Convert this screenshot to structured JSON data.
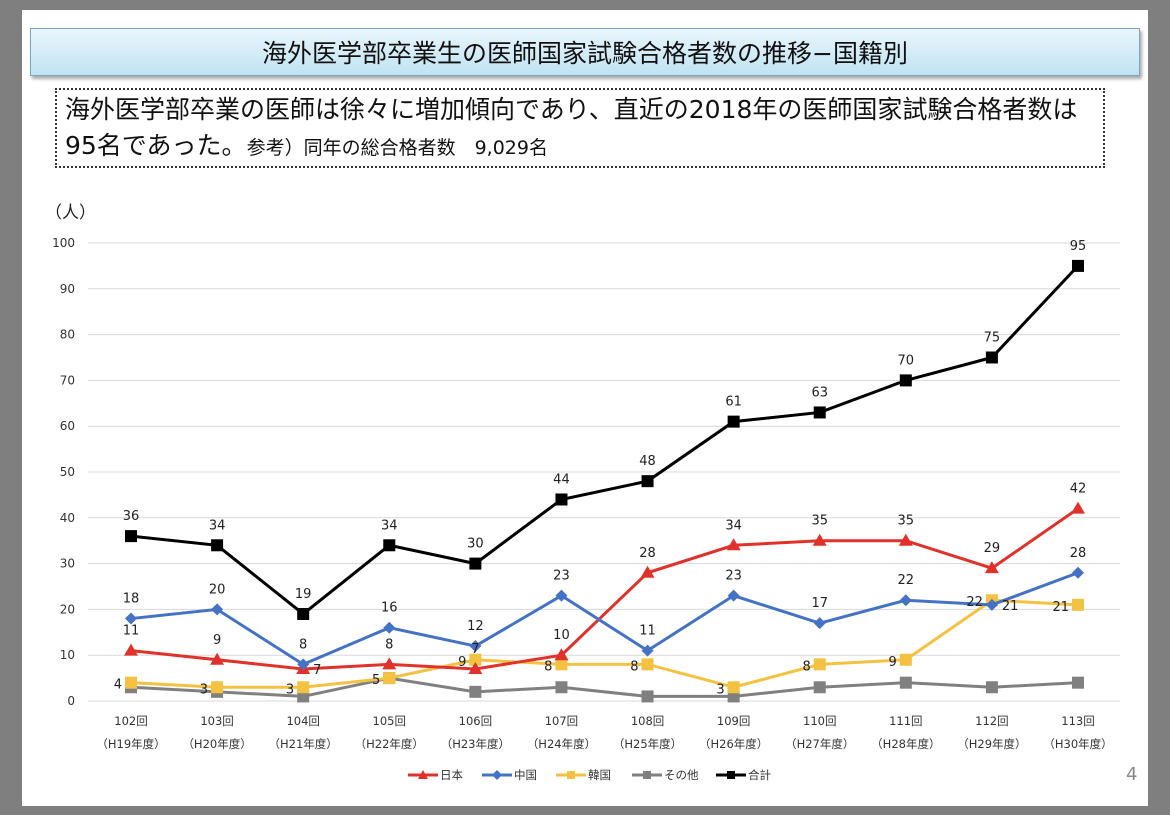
{
  "title": "海外医学部卒業生の医師国家試験合格者数の推移−国籍別",
  "summary": {
    "main": "海外医学部卒業の医師は徐々に増加傾向であり、直近の2018年の医師国家試験合格者数は95名であった。",
    "ref": "参考）同年の総合格者数　9,029名"
  },
  "page_number": "4",
  "chart_data": {
    "type": "line",
    "ylabel": "（人）",
    "ylim": [
      0,
      100
    ],
    "yticks": [
      0,
      10,
      20,
      30,
      40,
      50,
      60,
      70,
      80,
      90,
      100
    ],
    "grid": true,
    "legend_position": "bottom",
    "categories": [
      [
        "102回",
        "（H19年度）"
      ],
      [
        "103回",
        "（H20年度）"
      ],
      [
        "104回",
        "（H21年度）"
      ],
      [
        "105回",
        "（H22年度）"
      ],
      [
        "106回",
        "（H23年度）"
      ],
      [
        "107回",
        "（H24年度）"
      ],
      [
        "108回",
        "（H25年度）"
      ],
      [
        "109回",
        "（H26年度）"
      ],
      [
        "110回",
        "（H27年度）"
      ],
      [
        "111回",
        "（H28年度）"
      ],
      [
        "112回",
        "（H29年度）"
      ],
      [
        "113回",
        "（H30年度）"
      ]
    ],
    "series": [
      {
        "name": "日本",
        "color": "#e0322a",
        "marker": "triangle",
        "labels": true,
        "label_pos": "above",
        "values": [
          11,
          9,
          7,
          8,
          7,
          10,
          28,
          34,
          35,
          35,
          29,
          42
        ]
      },
      {
        "name": "中国",
        "color": "#4472c4",
        "marker": "diamond",
        "labels": true,
        "label_pos": "above",
        "values": [
          18,
          20,
          8,
          16,
          12,
          23,
          11,
          23,
          17,
          22,
          21,
          28
        ]
      },
      {
        "name": "韓国",
        "color": "#f4c242",
        "marker": "square",
        "labels": true,
        "label_pos": "left",
        "values": [
          4,
          3,
          3,
          5,
          9,
          8,
          8,
          3,
          8,
          9,
          22,
          21
        ]
      },
      {
        "name": "その他",
        "color": "#808080",
        "marker": "square",
        "labels": false,
        "values": [
          3,
          2,
          1,
          5,
          2,
          3,
          1,
          1,
          3,
          4,
          3,
          4
        ]
      },
      {
        "name": "合計",
        "color": "#000000",
        "marker": "square",
        "labels": true,
        "label_pos": "above",
        "values": [
          36,
          34,
          19,
          34,
          30,
          44,
          48,
          61,
          63,
          70,
          75,
          95
        ]
      }
    ]
  }
}
